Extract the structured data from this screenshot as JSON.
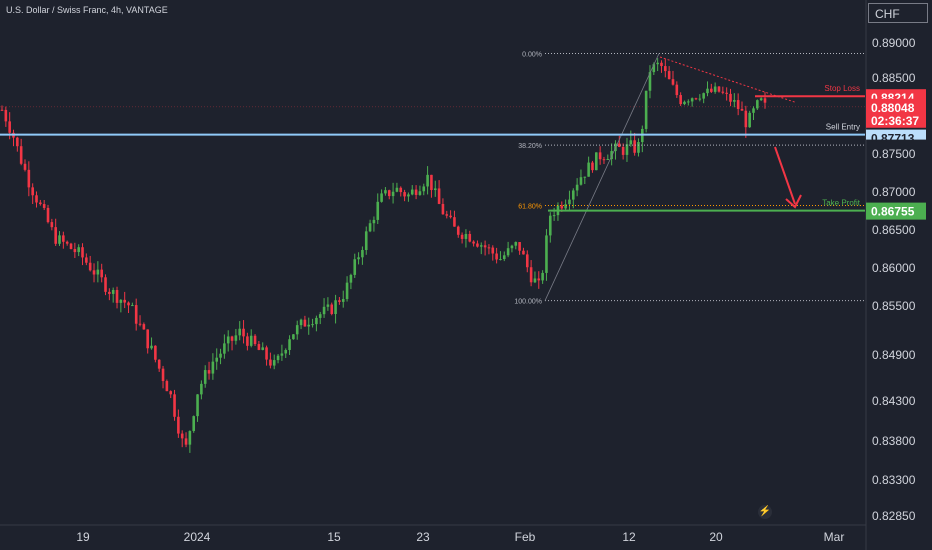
{
  "header": {
    "title": "U.S. Dollar / Swiss Franc, 4h, VANTAGE",
    "currency": "CHF"
  },
  "colors": {
    "background": "#1e222d",
    "bull": "#4caf50",
    "bear": "#f23645",
    "text": "#d1d4dc",
    "entry_line": "#90caf9",
    "stop_loss": "#f23645",
    "take_profit": "#4caf50",
    "fib_orange": "#ff9800"
  },
  "chart_data": {
    "type": "candlestick",
    "title": "U.S. Dollar / Swiss Franc, 4h, VANTAGE",
    "y_axis_label": "CHF",
    "y_ticks": [
      0.89,
      0.885,
      0.8795,
      0.875,
      0.87,
      0.865,
      0.86,
      0.855,
      0.849,
      0.843,
      0.838,
      0.833,
      0.8285
    ],
    "y_tick_labels": [
      "0.89000",
      "0.88500",
      "0.87950",
      "0.87500",
      "0.87000",
      "0.86500",
      "0.86000",
      "0.85500",
      "0.84900",
      "0.84300",
      "0.83800",
      "0.83300",
      "0.82850"
    ],
    "x_tick_labels": [
      "19",
      "2024",
      "15",
      "23",
      "Feb",
      "12",
      "20",
      "Mar"
    ],
    "price_path": [
      [
        0.8805,
        0
      ],
      [
        0.8775,
        12
      ],
      [
        0.871,
        30
      ],
      [
        0.864,
        55
      ],
      [
        0.8618,
        80
      ],
      [
        0.857,
        110
      ],
      [
        0.855,
        130
      ],
      [
        0.85,
        150
      ],
      [
        0.844,
        170
      ],
      [
        0.839,
        180
      ],
      [
        0.8365,
        185
      ],
      [
        0.8445,
        198
      ],
      [
        0.848,
        212
      ],
      [
        0.85,
        225
      ],
      [
        0.8518,
        240
      ],
      [
        0.8492,
        262
      ],
      [
        0.8475,
        275
      ],
      [
        0.8515,
        290
      ],
      [
        0.8535,
        310
      ],
      [
        0.8545,
        330
      ],
      [
        0.8568,
        345
      ],
      [
        0.8615,
        358
      ],
      [
        0.865,
        368
      ],
      [
        0.869,
        380
      ],
      [
        0.8705,
        395
      ],
      [
        0.8695,
        408
      ],
      [
        0.872,
        428
      ],
      [
        0.868,
        440
      ],
      [
        0.865,
        455
      ],
      [
        0.8642,
        470
      ],
      [
        0.8628,
        485
      ],
      [
        0.8612,
        500
      ],
      [
        0.8632,
        518
      ],
      [
        0.8592,
        530
      ],
      [
        0.8573,
        540
      ],
      [
        0.867,
        550
      ],
      [
        0.869,
        565
      ],
      [
        0.872,
        580
      ],
      [
        0.8748,
        600
      ],
      [
        0.8755,
        620
      ],
      [
        0.8758,
        640
      ],
      [
        0.8862,
        650
      ],
      [
        0.887,
        660
      ],
      [
        0.8815,
        680
      ],
      [
        0.8825,
        700
      ],
      [
        0.883,
        718
      ],
      [
        0.881,
        735
      ],
      [
        0.8782,
        748
      ],
      [
        0.8815,
        760
      ],
      [
        0.8805,
        765
      ]
    ],
    "candle_count": 200,
    "annotations": {
      "stop_loss": {
        "label": "Stop Loss",
        "price": 0.88214,
        "price_label": "0.88214"
      },
      "sell_entry": {
        "label": "Sell Entry",
        "price": 0.87713,
        "price_label": "0.87713"
      },
      "take_profit": {
        "label": "Take Profit",
        "price": 0.86755,
        "price_label": "0.86755"
      },
      "current_price": {
        "price": 0.88048,
        "price_label": "0.88048",
        "countdown": "02:36:37"
      }
    },
    "fibonacci": {
      "high": 0.8885,
      "low": 0.8557,
      "levels": [
        {
          "label": "0.00%",
          "ratio": 0.0
        },
        {
          "label": "38.20%",
          "ratio": 0.382
        },
        {
          "label": "61.80%",
          "ratio": 0.618
        },
        {
          "label": "100.00%",
          "ratio": 1.0
        }
      ]
    }
  }
}
